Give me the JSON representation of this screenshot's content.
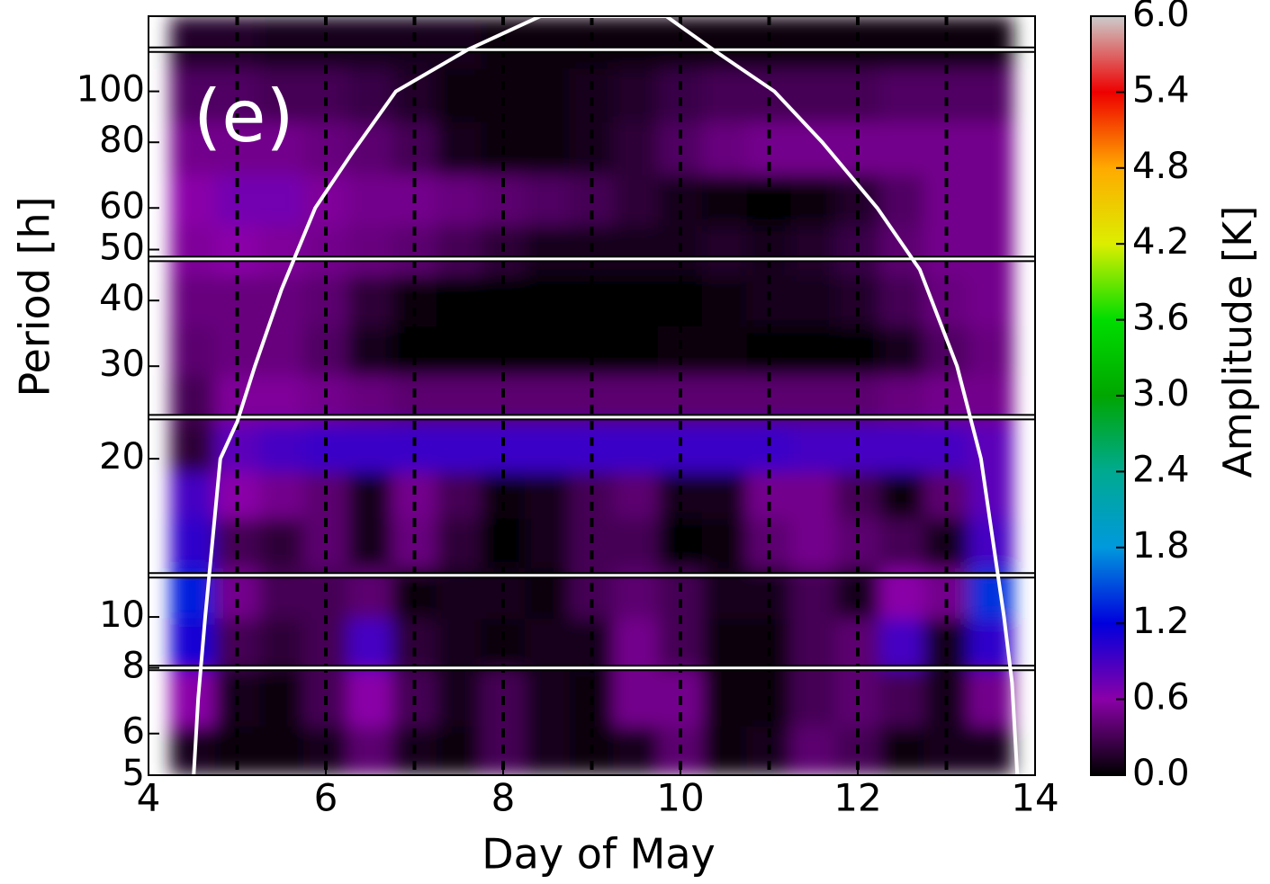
{
  "chart_data": {
    "type": "heatmap",
    "annotation": "(e)",
    "xlabel": "Day of May",
    "ylabel": "Period [h]",
    "colorbar_label": "Amplitude [K]",
    "xlim": [
      4,
      14
    ],
    "xticks": [
      4,
      6,
      8,
      10,
      12,
      14
    ],
    "ylim": [
      5,
      139
    ],
    "yscale": "log",
    "yticks": [
      5,
      6,
      8,
      10,
      20,
      30,
      40,
      50,
      60,
      80,
      100
    ],
    "clim": [
      0,
      6
    ],
    "cticks": [
      {
        "value": 0,
        "label": "0.0"
      },
      0.6,
      1.2,
      1.8,
      2.4,
      {
        "value": 3,
        "label": "3.0"
      },
      3.6,
      4.2,
      4.8,
      5.4,
      {
        "value": 6,
        "label": "6.0"
      }
    ],
    "colormap": [
      "#000000",
      "#8a00a8",
      "#0000dd",
      "#0099dd",
      "#00aa90",
      "#00a600",
      "#00dd00",
      "#dcee00",
      "#ffaa00",
      "#ee0000",
      "#cccccc"
    ],
    "x": [
      4.5,
      5,
      5.5,
      6,
      6.5,
      7,
      7.5,
      8,
      8.5,
      9,
      9.5,
      10,
      10.5,
      11,
      11.5,
      12,
      12.5,
      13,
      13.5
    ],
    "y": [
      5.5,
      7,
      9,
      11,
      14,
      17,
      21,
      26,
      32,
      40,
      50,
      62,
      78,
      98,
      125
    ],
    "z": [
      [
        0.1,
        0.05,
        0.05,
        0.1,
        0.4,
        0.1,
        0.05,
        0.3,
        0.1,
        0.05,
        0.1,
        0.4,
        0.05,
        0.1,
        0.4,
        0.3,
        0.05,
        0.1,
        0.1
      ],
      [
        0.6,
        0.1,
        0.05,
        0.3,
        0.6,
        0.3,
        0.1,
        0.3,
        0.1,
        0.05,
        0.5,
        0.5,
        0.05,
        0.05,
        0.3,
        0.4,
        0.3,
        0.1,
        0.5
      ],
      [
        1.1,
        0.3,
        0.2,
        0.3,
        0.9,
        0.2,
        0.1,
        0.05,
        0.1,
        0.1,
        0.5,
        0.3,
        0.05,
        0.05,
        0.3,
        0.4,
        0.9,
        0.1,
        1.0
      ],
      [
        1.3,
        0.5,
        0.3,
        0.3,
        0.4,
        0.05,
        0.1,
        0.1,
        0.05,
        0.3,
        0.4,
        0.3,
        0.1,
        0.1,
        0.3,
        0.1,
        0.6,
        0.5,
        1.4
      ],
      [
        1.0,
        0.3,
        0.2,
        0.4,
        0.1,
        0.45,
        0.2,
        0.0,
        0.1,
        0.3,
        0.3,
        0.0,
        0.05,
        0.4,
        0.5,
        0.4,
        0.3,
        0.1,
        0.9
      ],
      [
        0.9,
        0.6,
        0.5,
        0.4,
        0.1,
        0.5,
        0.3,
        0.05,
        0.1,
        0.3,
        0.4,
        0.1,
        0.1,
        0.5,
        0.5,
        0.3,
        0.05,
        0.4,
        0.8
      ],
      [
        0.2,
        0.8,
        0.9,
        0.95,
        0.95,
        0.95,
        0.95,
        0.95,
        0.95,
        0.95,
        0.95,
        0.95,
        0.95,
        0.95,
        0.9,
        0.9,
        0.9,
        0.9,
        0.8
      ],
      [
        0.3,
        0.55,
        0.55,
        0.5,
        0.45,
        0.4,
        0.4,
        0.4,
        0.4,
        0.4,
        0.4,
        0.4,
        0.4,
        0.4,
        0.4,
        0.4,
        0.45,
        0.5,
        0.5
      ],
      [
        0.4,
        0.45,
        0.45,
        0.35,
        0.1,
        0.02,
        0.0,
        0.0,
        0.0,
        0.0,
        0.02,
        0.05,
        0.05,
        0.0,
        0.0,
        0.02,
        0.1,
        0.35,
        0.45
      ],
      [
        0.45,
        0.45,
        0.45,
        0.4,
        0.2,
        0.05,
        0.02,
        0.0,
        0.0,
        0.0,
        0.0,
        0.02,
        0.05,
        0.1,
        0.1,
        0.15,
        0.3,
        0.45,
        0.5
      ],
      [
        0.55,
        0.6,
        0.55,
        0.5,
        0.45,
        0.4,
        0.3,
        0.2,
        0.1,
        0.1,
        0.1,
        0.1,
        0.15,
        0.1,
        0.15,
        0.25,
        0.4,
        0.5,
        0.5
      ],
      [
        0.6,
        0.7,
        0.7,
        0.55,
        0.5,
        0.5,
        0.45,
        0.4,
        0.35,
        0.3,
        0.2,
        0.1,
        0.05,
        0.0,
        0.05,
        0.15,
        0.35,
        0.5,
        0.5
      ],
      [
        0.5,
        0.5,
        0.5,
        0.45,
        0.4,
        0.3,
        0.1,
        0.05,
        0.05,
        0.1,
        0.2,
        0.35,
        0.45,
        0.5,
        0.5,
        0.5,
        0.5,
        0.5,
        0.5
      ],
      [
        0.35,
        0.35,
        0.3,
        0.3,
        0.25,
        0.15,
        0.05,
        0.05,
        0.05,
        0.1,
        0.15,
        0.25,
        0.3,
        0.3,
        0.3,
        0.3,
        0.35,
        0.35,
        0.35
      ],
      [
        0.15,
        0.15,
        0.1,
        0.1,
        0.1,
        0.1,
        0.1,
        0.05,
        0.05,
        0.05,
        0.05,
        0.05,
        0.05,
        0.05,
        0.05,
        0.05,
        0.05,
        0.05,
        0.05
      ]
    ],
    "vlines": [
      5,
      6,
      7,
      8,
      9,
      10,
      11,
      12,
      13
    ],
    "hlines": [
      120,
      48,
      24,
      12,
      8
    ],
    "coi": {
      "color": "#ffffff",
      "x": [
        4.51,
        4.56,
        4.64,
        4.81,
        5.0,
        5.2,
        5.5,
        5.88,
        6.3,
        6.79,
        7.6,
        8.42,
        9.84,
        10.4,
        11.06,
        11.6,
        12.22,
        12.7,
        13.12,
        13.39,
        13.65,
        13.74,
        13.8
      ],
      "y": [
        5,
        7,
        10,
        20,
        23.5,
        30,
        42,
        60,
        76.5,
        100,
        120,
        139,
        139,
        119,
        100,
        80,
        60,
        45.8,
        30,
        20,
        10,
        7.5,
        5
      ]
    }
  }
}
